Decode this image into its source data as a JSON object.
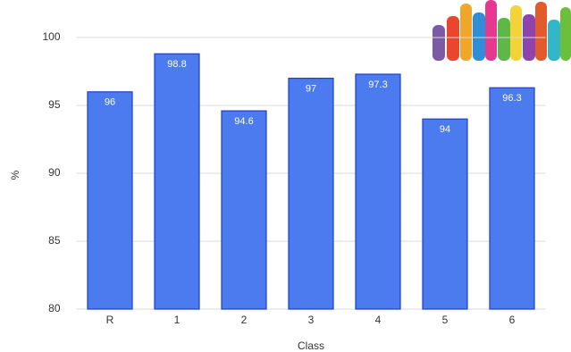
{
  "chart_data": {
    "type": "bar",
    "x_label": "Class",
    "y_label": "%",
    "categories": [
      "R",
      "1",
      "2",
      "3",
      "4",
      "5",
      "6"
    ],
    "values": [
      96,
      98.8,
      94.6,
      97,
      97.3,
      94,
      96.3
    ],
    "color": "#4b7bef",
    "ylim": [
      80,
      100
    ],
    "yticks": [
      80,
      85,
      90,
      95,
      100
    ],
    "grid": true
  }
}
